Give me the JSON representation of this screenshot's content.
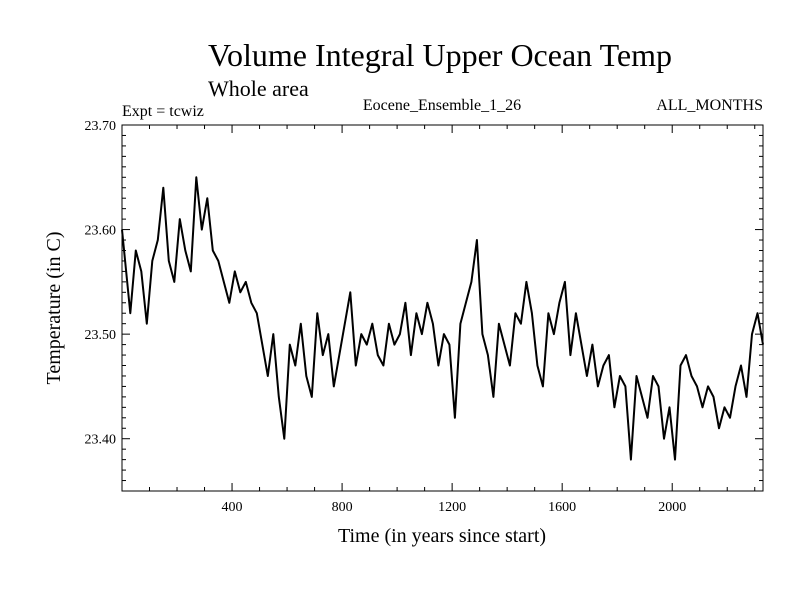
{
  "chart_data": {
    "type": "line",
    "title": "Volume Integral Upper Ocean Temp",
    "subtitle": "Whole area",
    "annotations": {
      "left": "Expt = tcwiz",
      "center": "Eocene_Ensemble_1_26",
      "right": "ALL_MONTHS"
    },
    "xlabel": "Time (in years since start)",
    "ylabel": "Temperature (in C)",
    "xlim": [
      0,
      2330
    ],
    "ylim": [
      23.35,
      23.7
    ],
    "xticks": [
      400,
      800,
      1200,
      1600,
      2000
    ],
    "xtick_labels": [
      "400",
      "800",
      "1200",
      "1600",
      "2000"
    ],
    "yticks": [
      23.4,
      23.5,
      23.6,
      23.7
    ],
    "ytick_labels": [
      "23.40",
      "23.50",
      "23.60",
      "23.70"
    ],
    "grid": false,
    "legend": "none",
    "series": [
      {
        "color": "#000000",
        "x": [
          0,
          30,
          50,
          70,
          90,
          110,
          130,
          150,
          170,
          190,
          210,
          230,
          250,
          270,
          290,
          310,
          330,
          350,
          370,
          390,
          410,
          430,
          450,
          470,
          490,
          510,
          530,
          550,
          570,
          590,
          610,
          630,
          650,
          670,
          690,
          710,
          730,
          750,
          770,
          790,
          810,
          830,
          850,
          870,
          890,
          910,
          930,
          950,
          970,
          990,
          1010,
          1030,
          1050,
          1070,
          1090,
          1110,
          1130,
          1150,
          1170,
          1190,
          1210,
          1230,
          1250,
          1270,
          1290,
          1310,
          1330,
          1350,
          1370,
          1390,
          1410,
          1430,
          1450,
          1470,
          1490,
          1510,
          1530,
          1550,
          1570,
          1590,
          1610,
          1630,
          1650,
          1670,
          1690,
          1710,
          1730,
          1750,
          1770,
          1790,
          1810,
          1830,
          1850,
          1870,
          1890,
          1910,
          1930,
          1950,
          1970,
          1990,
          2010,
          2030,
          2050,
          2070,
          2090,
          2110,
          2130,
          2150,
          2170,
          2190,
          2210,
          2230,
          2250,
          2270,
          2290,
          2310,
          2330
        ],
        "y": [
          23.6,
          23.52,
          23.58,
          23.56,
          23.51,
          23.57,
          23.59,
          23.64,
          23.57,
          23.55,
          23.61,
          23.58,
          23.56,
          23.65,
          23.6,
          23.63,
          23.58,
          23.57,
          23.55,
          23.53,
          23.56,
          23.54,
          23.55,
          23.53,
          23.52,
          23.49,
          23.46,
          23.5,
          23.44,
          23.4,
          23.49,
          23.47,
          23.51,
          23.46,
          23.44,
          23.52,
          23.48,
          23.5,
          23.45,
          23.48,
          23.51,
          23.54,
          23.47,
          23.5,
          23.49,
          23.51,
          23.48,
          23.47,
          23.51,
          23.49,
          23.5,
          23.53,
          23.48,
          23.52,
          23.5,
          23.53,
          23.51,
          23.47,
          23.5,
          23.49,
          23.42,
          23.51,
          23.53,
          23.55,
          23.59,
          23.5,
          23.48,
          23.44,
          23.51,
          23.49,
          23.47,
          23.52,
          23.51,
          23.55,
          23.52,
          23.47,
          23.45,
          23.52,
          23.5,
          23.53,
          23.55,
          23.48,
          23.52,
          23.49,
          23.46,
          23.49,
          23.45,
          23.47,
          23.48,
          23.43,
          23.46,
          23.45,
          23.38,
          23.46,
          23.44,
          23.42,
          23.46,
          23.45,
          23.4,
          23.43,
          23.38,
          23.47,
          23.48,
          23.46,
          23.45,
          23.43,
          23.45,
          23.44,
          23.41,
          23.43,
          23.42,
          23.45,
          23.47,
          23.44,
          23.5,
          23.52,
          23.49
        ]
      }
    ]
  }
}
